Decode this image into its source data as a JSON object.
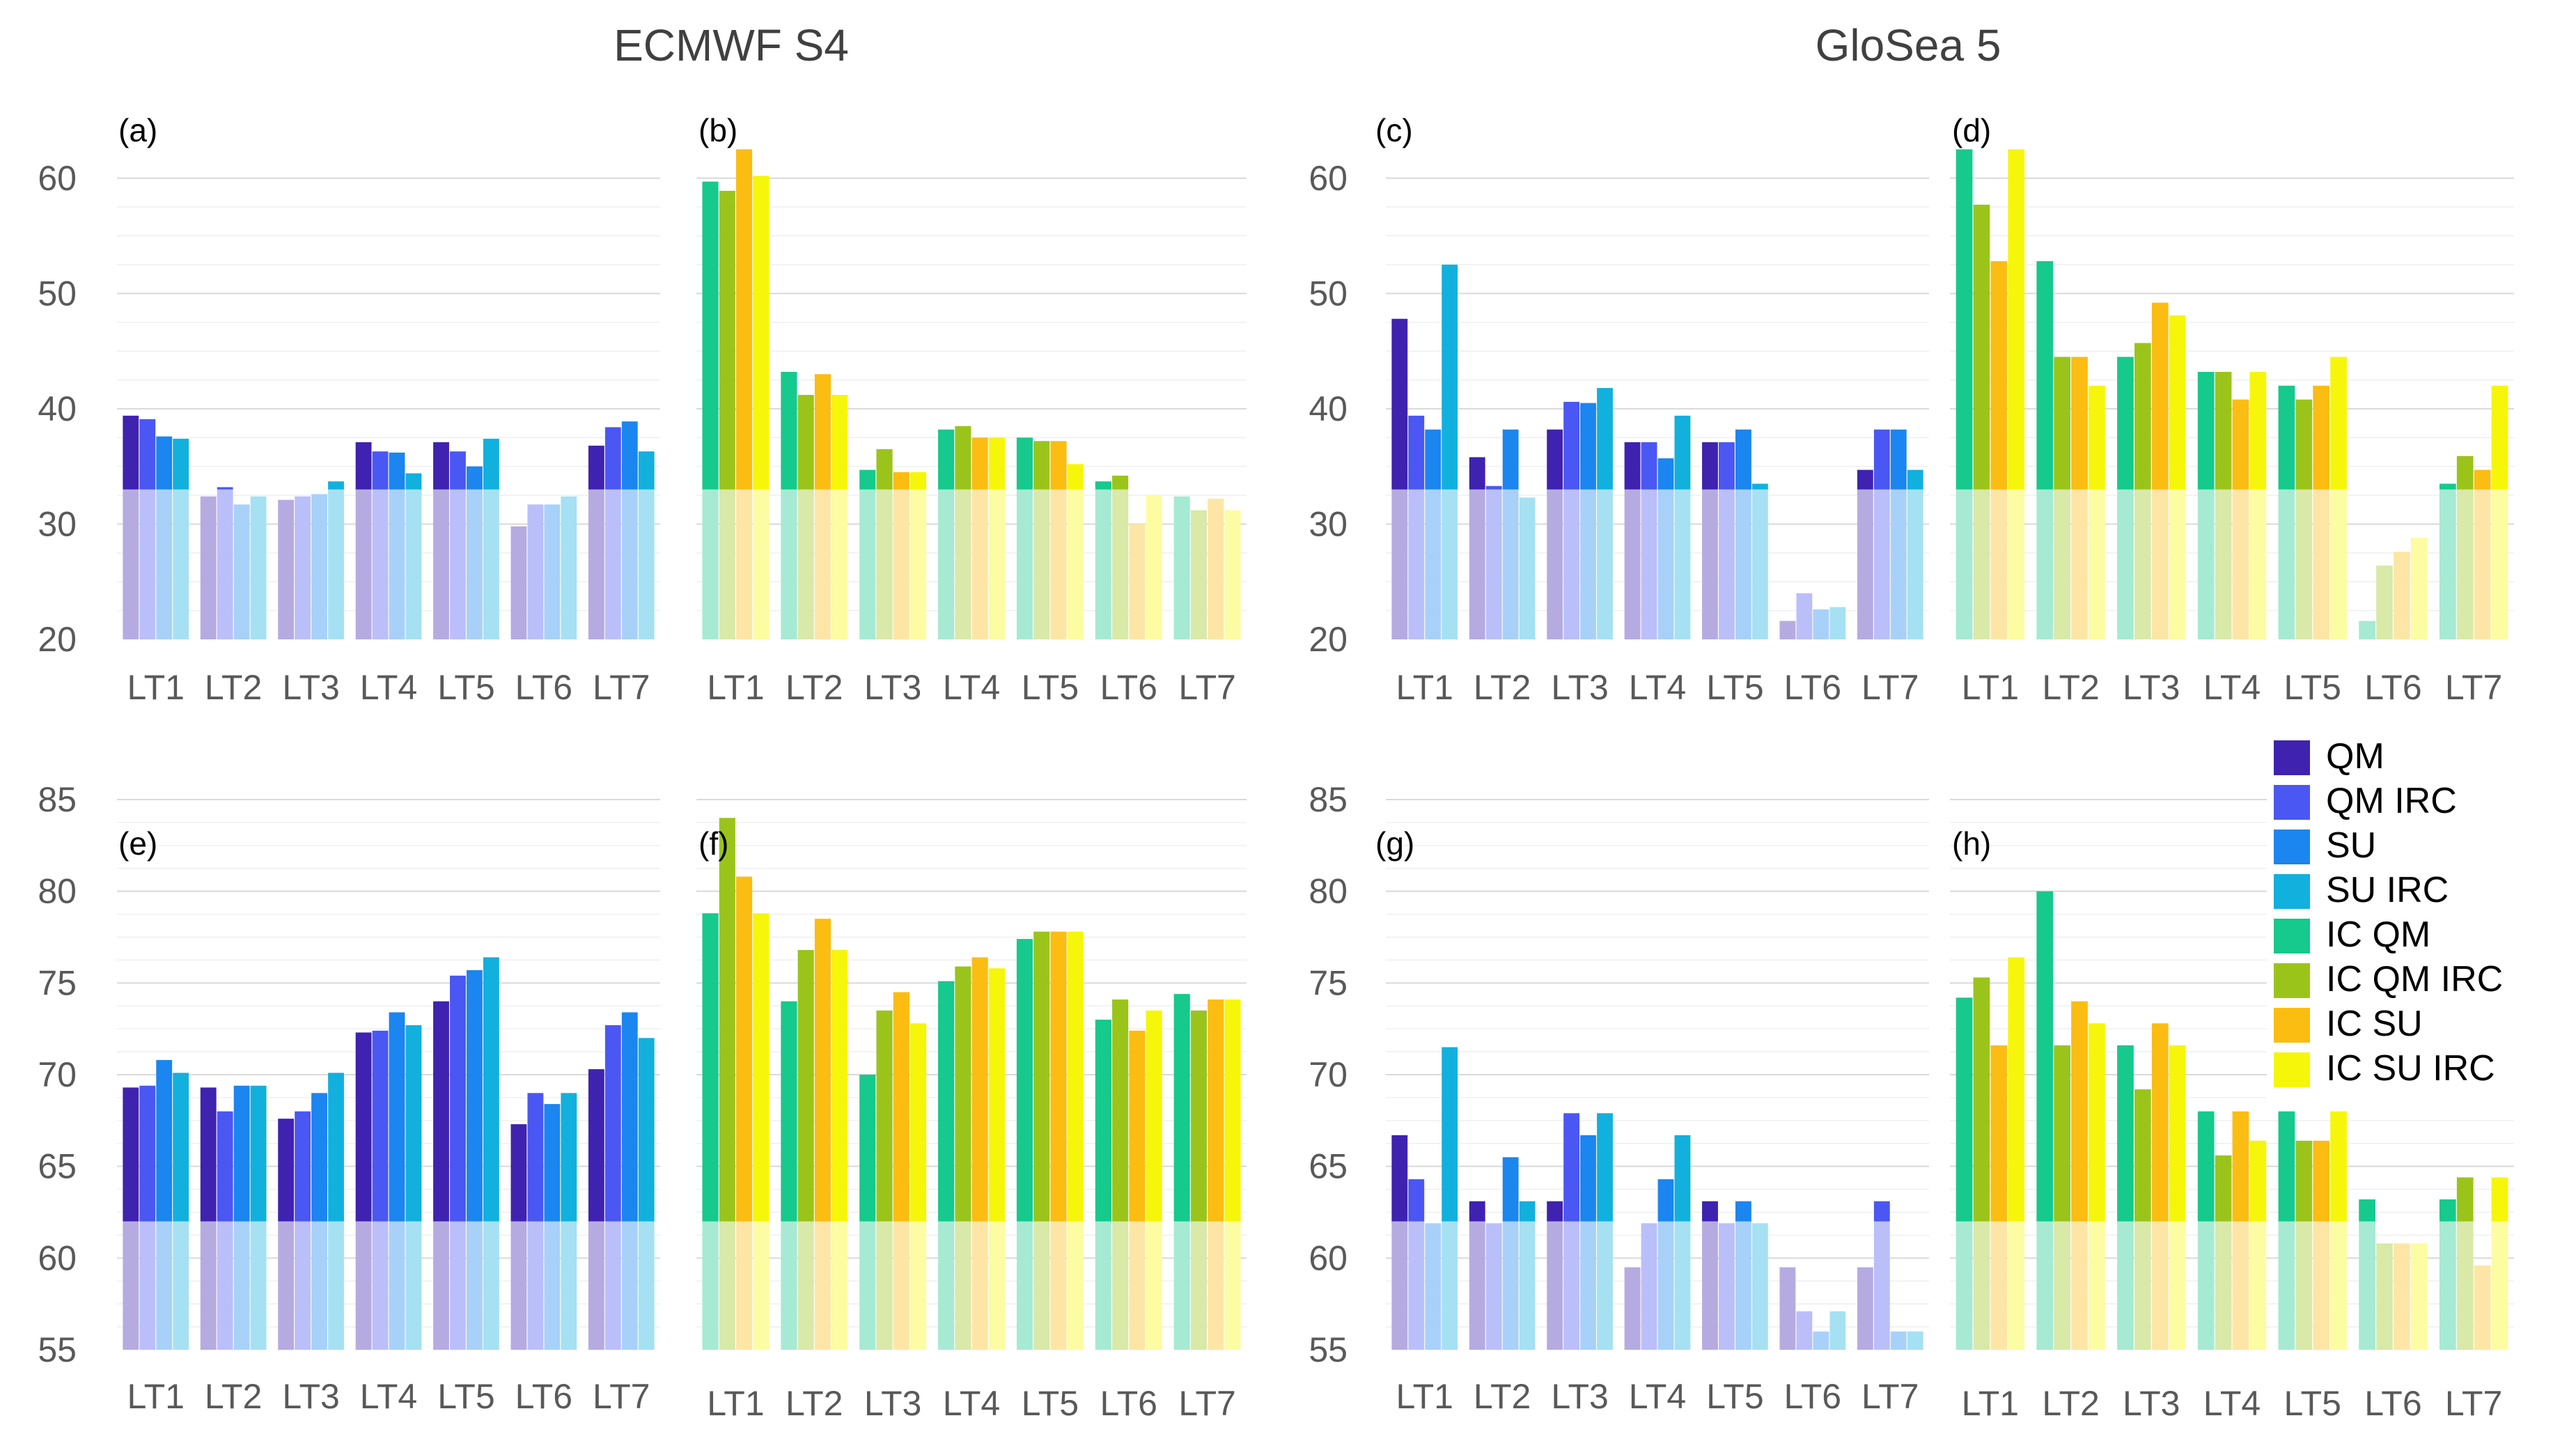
{
  "titles": {
    "left": "ECMWF S4",
    "right": "GloSea 5"
  },
  "series_colors": [
    "#3f22b0",
    "#4a57f2",
    "#1b85f0",
    "#12b0dd",
    "#16c98c",
    "#9bc41b",
    "#fbbd12",
    "#f6f60a"
  ],
  "baseline_note": "lower portion of each bar is drawn in a lighter tint below the reference level",
  "chart_data": [
    {
      "type": "bar",
      "panel": "(a)",
      "group": "ECMWF S4",
      "categories": [
        "LT1",
        "LT2",
        "LT3",
        "LT4",
        "LT5",
        "LT6",
        "LT7"
      ],
      "ylim": [
        20,
        65
      ],
      "yticks": [
        20,
        30,
        40,
        50,
        60
      ],
      "reference": 33,
      "series_start": 0,
      "series": [
        {
          "name": "QM",
          "values": [
            39.4,
            32.4,
            32.1,
            37.1,
            37.1,
            29.8,
            36.8
          ]
        },
        {
          "name": "QM IRC",
          "values": [
            39.1,
            33.2,
            32.4,
            36.3,
            36.3,
            31.7,
            38.4
          ]
        },
        {
          "name": "SU",
          "values": [
            37.6,
            31.7,
            32.6,
            36.2,
            35.0,
            31.7,
            38.9
          ]
        },
        {
          "name": "SU IRC",
          "values": [
            37.4,
            32.4,
            33.7,
            34.4,
            37.4,
            32.4,
            36.3
          ]
        }
      ]
    },
    {
      "type": "bar",
      "panel": "(b)",
      "group": "ECMWF S4",
      "categories": [
        "LT1",
        "LT2",
        "LT3",
        "LT4",
        "LT5",
        "LT6",
        "LT7"
      ],
      "ylim": [
        20,
        65
      ],
      "yticks": [
        20,
        30,
        40,
        50,
        60
      ],
      "reference": 33,
      "series_start": 4,
      "series": [
        {
          "name": "IC QM",
          "values": [
            59.7,
            43.2,
            34.7,
            38.2,
            37.5,
            33.7,
            32.4
          ]
        },
        {
          "name": "IC QM IRC",
          "values": [
            58.9,
            41.2,
            36.5,
            38.5,
            37.2,
            34.2,
            31.2
          ]
        },
        {
          "name": "IC SU",
          "values": [
            62.5,
            43.0,
            34.5,
            37.5,
            37.2,
            30.0,
            32.2
          ]
        },
        {
          "name": "IC SU IRC",
          "values": [
            60.2,
            41.2,
            34.5,
            37.5,
            35.2,
            32.5,
            31.2
          ]
        }
      ]
    },
    {
      "type": "bar",
      "panel": "(c)",
      "group": "GloSea 5",
      "categories": [
        "LT1",
        "LT2",
        "LT3",
        "LT4",
        "LT5",
        "LT6",
        "LT7"
      ],
      "ylim": [
        20,
        65
      ],
      "yticks": [
        20,
        30,
        40,
        50,
        60
      ],
      "reference": 33,
      "series_start": 0,
      "series": [
        {
          "name": "QM",
          "values": [
            47.8,
            35.8,
            38.2,
            37.1,
            37.1,
            21.6,
            34.7
          ]
        },
        {
          "name": "QM IRC",
          "values": [
            39.4,
            33.3,
            40.6,
            37.1,
            37.1,
            24.0,
            38.2
          ]
        },
        {
          "name": "SU",
          "values": [
            38.2,
            38.2,
            40.5,
            35.7,
            38.2,
            22.6,
            38.2
          ]
        },
        {
          "name": "SU IRC",
          "values": [
            52.5,
            32.3,
            41.8,
            39.4,
            33.5,
            22.8,
            34.7
          ]
        }
      ]
    },
    {
      "type": "bar",
      "panel": "(d)",
      "group": "GloSea 5",
      "categories": [
        "LT1",
        "LT2",
        "LT3",
        "LT4",
        "LT5",
        "LT6",
        "LT7"
      ],
      "ylim": [
        20,
        65
      ],
      "yticks": [
        20,
        30,
        40,
        50,
        60
      ],
      "reference": 33,
      "series_start": 4,
      "series": [
        {
          "name": "IC QM",
          "values": [
            62.5,
            52.8,
            44.5,
            43.2,
            42.0,
            21.6,
            33.5
          ]
        },
        {
          "name": "IC QM IRC",
          "values": [
            57.7,
            44.5,
            45.7,
            43.2,
            40.8,
            26.4,
            35.9
          ]
        },
        {
          "name": "IC SU",
          "values": [
            52.8,
            44.5,
            49.2,
            40.8,
            42.0,
            27.6,
            34.7
          ]
        },
        {
          "name": "IC SU IRC",
          "values": [
            62.5,
            42.0,
            48.1,
            43.2,
            44.5,
            28.8,
            42.0
          ]
        }
      ]
    },
    {
      "type": "bar",
      "panel": "(e)",
      "group": "ECMWF S4",
      "categories": [
        "LT1",
        "LT2",
        "LT3",
        "LT4",
        "LT5",
        "LT6",
        "LT7"
      ],
      "ylim": [
        55,
        85
      ],
      "yticks": [
        55,
        60,
        65,
        70,
        75,
        80,
        85
      ],
      "reference": 62,
      "series_start": 0,
      "series": [
        {
          "name": "QM",
          "values": [
            69.3,
            69.3,
            67.6,
            72.3,
            74.0,
            67.3,
            70.3
          ]
        },
        {
          "name": "QM IRC",
          "values": [
            69.4,
            68.0,
            68.0,
            72.4,
            75.4,
            69.0,
            72.7
          ]
        },
        {
          "name": "SU",
          "values": [
            70.8,
            69.4,
            69.0,
            73.4,
            75.7,
            68.4,
            73.4
          ]
        },
        {
          "name": "SU IRC",
          "values": [
            70.1,
            69.4,
            70.1,
            72.7,
            76.4,
            69.0,
            72.0
          ]
        }
      ]
    },
    {
      "type": "bar",
      "panel": "(f)",
      "group": "ECMWF S4",
      "categories": [
        "LT1",
        "LT2",
        "LT3",
        "LT4",
        "LT5",
        "LT6",
        "LT7"
      ],
      "ylim": [
        55,
        85
      ],
      "yticks": [
        55,
        60,
        65,
        70,
        75,
        80,
        85
      ],
      "reference": 62,
      "series_start": 4,
      "series": [
        {
          "name": "IC QM",
          "values": [
            78.8,
            74.0,
            70.0,
            75.1,
            77.4,
            73.0,
            74.4
          ]
        },
        {
          "name": "IC QM IRC",
          "values": [
            84.0,
            76.8,
            73.5,
            75.9,
            77.8,
            74.1,
            73.5
          ]
        },
        {
          "name": "IC SU",
          "values": [
            80.8,
            78.5,
            74.5,
            76.4,
            77.8,
            72.4,
            74.1
          ]
        },
        {
          "name": "IC SU IRC",
          "values": [
            78.8,
            76.8,
            72.8,
            75.8,
            77.8,
            73.5,
            74.1
          ]
        }
      ]
    },
    {
      "type": "bar",
      "panel": "(g)",
      "group": "GloSea 5",
      "categories": [
        "LT1",
        "LT2",
        "LT3",
        "LT4",
        "LT5",
        "LT6",
        "LT7"
      ],
      "ylim": [
        55,
        85
      ],
      "yticks": [
        55,
        60,
        65,
        70,
        75,
        80,
        85
      ],
      "reference": 62,
      "series_start": 0,
      "series": [
        {
          "name": "QM",
          "values": [
            66.7,
            63.1,
            63.1,
            59.5,
            63.1,
            59.5,
            59.5
          ]
        },
        {
          "name": "QM IRC",
          "values": [
            64.3,
            61.9,
            67.9,
            61.9,
            61.9,
            57.1,
            63.1
          ]
        },
        {
          "name": "SU",
          "values": [
            61.9,
            65.5,
            66.7,
            64.3,
            63.1,
            56.0,
            56.0
          ]
        },
        {
          "name": "SU IRC",
          "values": [
            71.5,
            63.1,
            67.9,
            66.7,
            61.9,
            57.1,
            56.0
          ]
        }
      ]
    },
    {
      "type": "bar",
      "panel": "(h)",
      "group": "GloSea 5",
      "categories": [
        "LT1",
        "LT2",
        "LT3",
        "LT4",
        "LT5",
        "LT6",
        "LT7"
      ],
      "ylim": [
        55,
        85
      ],
      "yticks": [
        55,
        60,
        65,
        70,
        75,
        80,
        85
      ],
      "reference": 62,
      "series_start": 4,
      "series": [
        {
          "name": "IC QM",
          "values": [
            74.2,
            80.0,
            71.6,
            68.0,
            68.0,
            63.2,
            63.2
          ]
        },
        {
          "name": "IC QM IRC",
          "values": [
            75.3,
            71.6,
            69.2,
            65.6,
            66.4,
            60.8,
            64.4
          ]
        },
        {
          "name": "IC SU",
          "values": [
            71.6,
            74.0,
            72.8,
            68.0,
            66.4,
            60.8,
            59.6
          ]
        },
        {
          "name": "IC SU IRC",
          "values": [
            76.4,
            72.8,
            71.6,
            66.4,
            68.0,
            60.8,
            64.4
          ]
        }
      ]
    }
  ],
  "legend": {
    "position": "right of panel (h), top",
    "items": [
      "QM",
      "QM IRC",
      "SU",
      "SU IRC",
      "IC QM",
      "IC QM IRC",
      "IC SU",
      "IC SU IRC"
    ]
  }
}
